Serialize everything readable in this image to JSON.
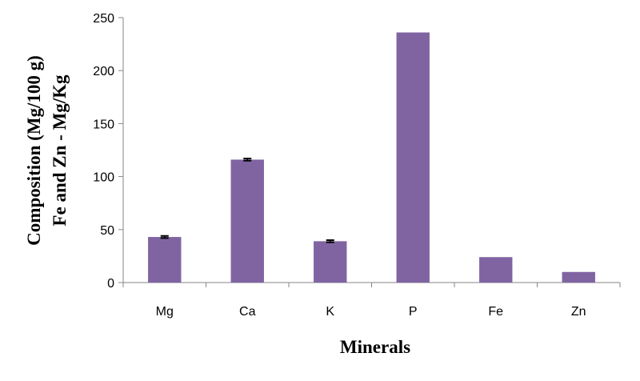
{
  "chart_data": {
    "type": "bar",
    "title": "",
    "xlabel": "Minerals",
    "ylabel_line1": "Composition (Mg/100 g)",
    "ylabel_line2": "Fe and Zn - Mg/Kg",
    "categories": [
      "Mg",
      "Ca",
      "K",
      "P",
      "Fe",
      "Zn"
    ],
    "values": [
      43,
      116,
      39,
      236,
      24,
      10
    ],
    "error": [
      1,
      1,
      1,
      0,
      0,
      0
    ],
    "ylim": [
      0,
      250
    ],
    "yticks": [
      0,
      50,
      100,
      150,
      200,
      250
    ],
    "bar_color": "#8064a2",
    "grid": false,
    "legend": "none"
  }
}
